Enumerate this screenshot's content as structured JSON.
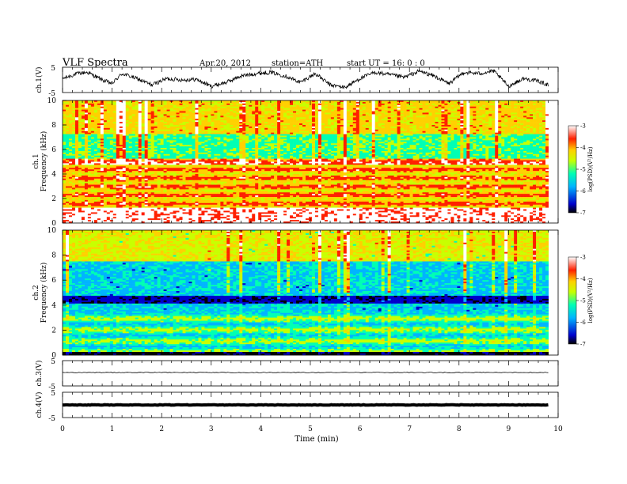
{
  "header": {
    "title": "VLF Spectra",
    "date": "Apr.20, 2012",
    "station": "station=ATH",
    "start": "start UT =",
    "start_time": "16: 0 : 0"
  },
  "chart_data": [
    {
      "type": "line",
      "panel": "ch1-waveform",
      "ylabel": "ch.1(V)",
      "ylim": [
        -5,
        5
      ],
      "yticks": [
        "5",
        "-5"
      ],
      "x": [
        0,
        0.3,
        0.5,
        0.8,
        1.0,
        1.2,
        1.5,
        1.8,
        2.1,
        2.4,
        2.7,
        3.0,
        3.3,
        3.6,
        3.9,
        4.2,
        4.5,
        4.8,
        5.1,
        5.4,
        5.7,
        6.0,
        6.3,
        6.6,
        6.9,
        7.2,
        7.5,
        7.8,
        8.1,
        8.4,
        8.7,
        9.0,
        9.3,
        9.6,
        9.8
      ],
      "y": [
        0.5,
        2.5,
        3.0,
        0.0,
        -1.5,
        2.5,
        0.5,
        -2.0,
        0.5,
        0.0,
        0.2,
        -2.5,
        -1.0,
        1.5,
        2.5,
        3.0,
        1.5,
        -1.0,
        2.5,
        -2.0,
        -3.0,
        0.5,
        3.0,
        2.0,
        1.0,
        3.5,
        1.5,
        -1.5,
        3.0,
        2.5,
        3.5,
        -2.5,
        0.5,
        -0.5,
        -2.0
      ]
    },
    {
      "type": "heatmap",
      "panel": "ch1-spectrogram",
      "ylabel": "ch.1 Frequency (kHz)",
      "ylim": [
        0,
        10
      ],
      "yticks": [
        "0",
        "2",
        "4",
        "6",
        "8",
        "10"
      ],
      "colorbar_label": "log(PSD)(V²/Hz)",
      "colorbar_ticks": [
        "-3",
        "-4",
        "-5",
        "-6",
        "-7"
      ]
    },
    {
      "type": "heatmap",
      "panel": "ch2-spectrogram",
      "ylabel": "ch.2 Frequency (kHz)",
      "ylim": [
        0,
        10
      ],
      "yticks": [
        "0",
        "2",
        "4",
        "6",
        "8",
        "10"
      ],
      "colorbar_label": "log(PSD)(V²/Hz)",
      "colorbar_ticks": [
        "-3",
        "-4",
        "-5",
        "-6",
        "-7"
      ]
    },
    {
      "type": "line",
      "panel": "ch3-waveform",
      "ylabel": "ch.3(V)",
      "ylim": [
        -5,
        5
      ],
      "yticks": [
        "5",
        "-5"
      ],
      "x": [
        0,
        9.8
      ],
      "y": [
        0,
        0
      ]
    },
    {
      "type": "line",
      "panel": "ch4-waveform",
      "ylabel": "ch.4(V)",
      "ylim": [
        -5,
        5
      ],
      "yticks": [
        "5",
        "-5"
      ],
      "x": [
        0,
        9.8
      ],
      "y": [
        0,
        0
      ]
    }
  ],
  "xaxis": {
    "label": "Time (min)",
    "xlim": [
      0,
      10
    ],
    "ticks": [
      "0",
      "1",
      "2",
      "3",
      "4",
      "5",
      "6",
      "7",
      "8",
      "9",
      "10"
    ]
  },
  "colors": {
    "line": "#000000",
    "cmap": [
      "#000000",
      "#0000cc",
      "#00b4ff",
      "#00ffb4",
      "#c8ff00",
      "#ffd000",
      "#ff2000",
      "#ffffff"
    ]
  }
}
